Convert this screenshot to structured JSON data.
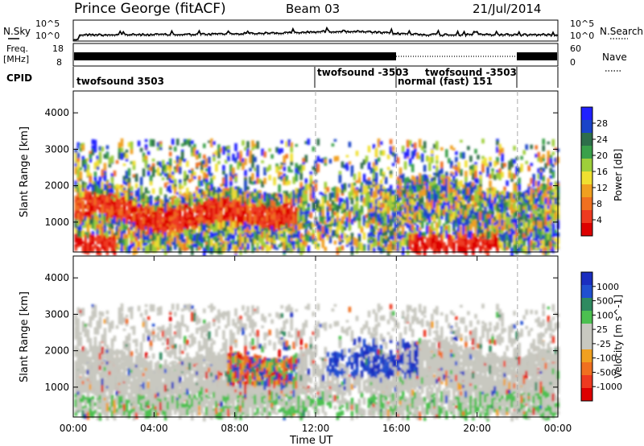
{
  "header": {
    "station": "Prince George (fitACF)",
    "beam": "Beam 03",
    "date": "21/Jul/2014"
  },
  "left_labels": {
    "nsky": "N.Sky",
    "freq_line1": "Freq.",
    "freq_line2": "[MHz]",
    "cpid": "CPID"
  },
  "right_labels": {
    "nsearch": "N.Search",
    "nave": "Nave"
  },
  "small_axes": {
    "noise_left_top": "10^5",
    "noise_left_bottom": "10^0",
    "noise_right_top": "10^5",
    "noise_right_bottom": "10^0",
    "freq_left_top": "18",
    "freq_left_bottom": "8",
    "freq_right_top": "60",
    "freq_right_bottom": "0"
  },
  "cpid_segments": [
    {
      "label": "twofsound 3503",
      "start_hour": 0,
      "end_hour": 12
    },
    {
      "label": "twofsound -3503",
      "start_hour": 12,
      "end_hour": 16
    },
    {
      "label": "normal (fast) 151",
      "start_hour": 16,
      "end_hour": 22
    },
    {
      "label": "twofsound -3503",
      "start_hour": 17.2,
      "end_hour": 22
    }
  ],
  "x_axis": {
    "label": "Time UT",
    "ticks": [
      "00:00",
      "04:00",
      "08:00",
      "12:00",
      "16:00",
      "20:00",
      "00:00"
    ],
    "tick_hours": [
      0,
      4,
      8,
      12,
      16,
      20,
      24
    ]
  },
  "chart_data": [
    {
      "type": "heatmap",
      "name": "power",
      "ylabel": "Slant Range [km]",
      "yticks": [
        1000,
        2000,
        3000,
        4000
      ],
      "ylim": [
        180,
        4600
      ],
      "colorbar_label": "Power [dB]",
      "colorbar_ticks": [
        "4",
        "8",
        "12",
        "16",
        "20",
        "24",
        "28"
      ],
      "colorbar_colors": [
        "#2020ff",
        "#1a44c8",
        "#2e6e4a",
        "#3aa04a",
        "#9ecf3a",
        "#f0e030",
        "#f0a020",
        "#f07020",
        "#ee3a20",
        "#dd0000"
      ]
    },
    {
      "type": "heatmap",
      "name": "velocity",
      "ylabel": "Slant Range [km]",
      "yticks": [
        1000,
        2000,
        3000,
        4000
      ],
      "ylim": [
        180,
        4600
      ],
      "colorbar_label": "Velocity [m s^-1]",
      "colorbar_ticks": [
        "1000",
        "500",
        "100",
        "25",
        "-25",
        "-100",
        "-500",
        "-1000"
      ],
      "colorbar_colors": [
        "#1a2ec0",
        "#2050d0",
        "#2f8a60",
        "#4cc050",
        "#c8c8c0",
        "#c8c8c0",
        "#f0a020",
        "#f07020",
        "#ee3a20",
        "#dd0000"
      ]
    }
  ]
}
